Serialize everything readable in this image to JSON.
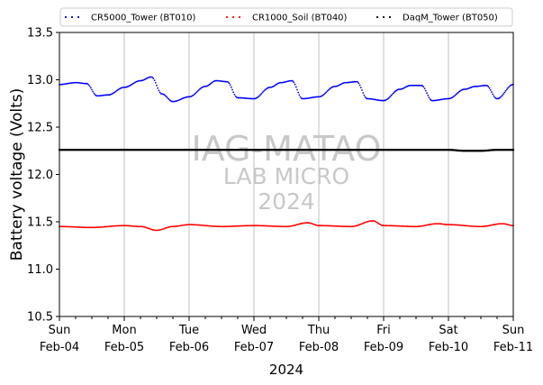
{
  "chart_data": {
    "type": "line",
    "title": "",
    "xlabel": "2024",
    "ylabel": "Battery voltage (Volts)",
    "ylim": [
      10.5,
      13.5
    ],
    "yticks": [
      "10.5",
      "11.0",
      "11.5",
      "12.0",
      "12.5",
      "13.0",
      "13.5"
    ],
    "xlim_days": [
      0,
      7
    ],
    "xticks": [
      {
        "day": "Sun",
        "date": "Feb-04"
      },
      {
        "day": "Mon",
        "date": "Feb-05"
      },
      {
        "day": "Tue",
        "date": "Feb-06"
      },
      {
        "day": "Wed",
        "date": "Feb-07"
      },
      {
        "day": "Thu",
        "date": "Feb-08"
      },
      {
        "day": "Fri",
        "date": "Feb-09"
      },
      {
        "day": "Sat",
        "date": "Feb-10"
      },
      {
        "day": "Sun",
        "date": "Feb-11"
      }
    ],
    "grid": "vertical",
    "legend_position": "top",
    "series": [
      {
        "name": "CR5000_Tower (BT010)",
        "color": "#0000ff",
        "marker": "dotted",
        "x": [
          "Feb-04 00:00",
          "Feb-04 06:00",
          "Feb-04 10:00",
          "Feb-04 14:00",
          "Feb-04 18:00",
          "Feb-05 00:00",
          "Feb-05 06:00",
          "Feb-05 10:00",
          "Feb-05 14:00",
          "Feb-05 18:00",
          "Feb-06 00:00",
          "Feb-06 06:00",
          "Feb-06 10:00",
          "Feb-06 14:00",
          "Feb-06 18:00",
          "Feb-07 00:00",
          "Feb-07 06:00",
          "Feb-07 10:00",
          "Feb-07 14:00",
          "Feb-07 18:00",
          "Feb-08 00:00",
          "Feb-08 06:00",
          "Feb-08 10:00",
          "Feb-08 14:00",
          "Feb-08 18:00",
          "Feb-09 00:00",
          "Feb-09 06:00",
          "Feb-09 10:00",
          "Feb-09 14:00",
          "Feb-09 18:00",
          "Feb-10 00:00",
          "Feb-10 06:00",
          "Feb-10 10:00",
          "Feb-10 14:00",
          "Feb-10 18:00",
          "Feb-11 00:00"
        ],
        "values": [
          12.95,
          12.97,
          12.96,
          12.83,
          12.84,
          12.92,
          12.99,
          13.03,
          12.85,
          12.77,
          12.82,
          12.93,
          12.99,
          12.98,
          12.81,
          12.8,
          12.92,
          12.97,
          12.99,
          12.8,
          12.82,
          12.93,
          12.97,
          12.98,
          12.8,
          12.78,
          12.9,
          12.94,
          12.94,
          12.78,
          12.8,
          12.9,
          12.93,
          12.94,
          12.8,
          12.95
        ]
      },
      {
        "name": "CR1000_Soil (BT040)",
        "color": "#ff0000",
        "marker": "dotted",
        "x": [
          "Feb-04 00:00",
          "Feb-04 12:00",
          "Feb-05 00:00",
          "Feb-05 06:00",
          "Feb-05 12:00",
          "Feb-05 18:00",
          "Feb-06 00:00",
          "Feb-06 12:00",
          "Feb-07 00:00",
          "Feb-07 12:00",
          "Feb-07 20:00",
          "Feb-08 00:00",
          "Feb-08 12:00",
          "Feb-08 20:00",
          "Feb-09 00:00",
          "Feb-09 12:00",
          "Feb-09 20:00",
          "Feb-10 00:00",
          "Feb-10 12:00",
          "Feb-10 20:00",
          "Feb-11 00:00"
        ],
        "values": [
          11.45,
          11.44,
          11.46,
          11.45,
          11.41,
          11.45,
          11.47,
          11.45,
          11.46,
          11.45,
          11.49,
          11.46,
          11.45,
          11.51,
          11.46,
          11.45,
          11.48,
          11.47,
          11.45,
          11.48,
          11.46
        ]
      },
      {
        "name": "DaqM_Tower (BT050)",
        "color": "#000000",
        "marker": "dotted",
        "x": [
          "Feb-04 00:00",
          "Feb-06 00:00",
          "Feb-08 00:00",
          "Feb-10 00:00",
          "Feb-10 06:00",
          "Feb-10 12:00",
          "Feb-10 18:00",
          "Feb-11 00:00"
        ],
        "values": [
          12.26,
          12.26,
          12.26,
          12.26,
          12.25,
          12.25,
          12.26,
          12.26
        ]
      }
    ],
    "watermark": [
      "IAG-MATAO",
      "LAB MICRO",
      "2024"
    ]
  }
}
